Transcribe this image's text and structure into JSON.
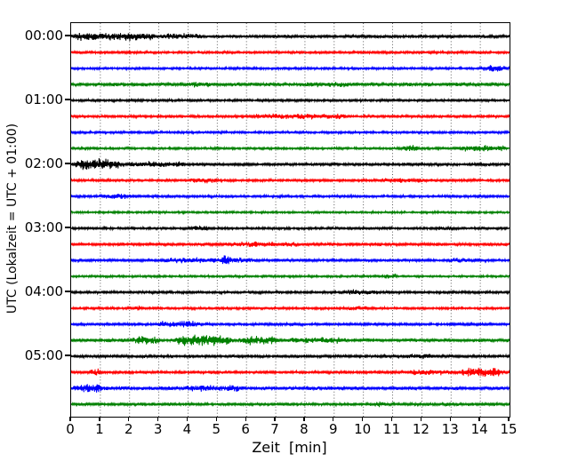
{
  "chart_data": {
    "type": "line",
    "variant": "helicorder-seismogram",
    "title": "",
    "xlabel": "Zeit  [min]",
    "ylabel": "UTC (Lokalzeit = UTC + 01:00)",
    "xlim": [
      0,
      15
    ],
    "x_ticks": [
      "0",
      "1",
      "2",
      "3",
      "4",
      "5",
      "6",
      "7",
      "8",
      "9",
      "10",
      "11",
      "12",
      "13",
      "14",
      "15"
    ],
    "grid": {
      "axis": "x",
      "style": "dotted",
      "color": "#4a4a4a"
    },
    "legend": "none",
    "colors": {
      "black": "#000000",
      "red": "#ff0000",
      "blue": "#0000ff",
      "green": "#008000"
    },
    "minutes_per_trace": 15,
    "y_hour_labels": [
      {
        "label": "00:00",
        "trace_index": 0
      },
      {
        "label": "01:00",
        "trace_index": 4
      },
      {
        "label": "02:00",
        "trace_index": 8
      },
      {
        "label": "03:00",
        "trace_index": 12
      },
      {
        "label": "04:00",
        "trace_index": 16
      },
      {
        "label": "05:00",
        "trace_index": 20
      }
    ],
    "traces": [
      {
        "start_utc": "00:00",
        "color": "black",
        "base_amp": 1.5,
        "events": [
          {
            "from": 0,
            "to": 3.0,
            "amp": 2.4
          },
          {
            "from": 3.0,
            "to": 4.6,
            "amp": 1.4
          }
        ]
      },
      {
        "start_utc": "00:15",
        "color": "red",
        "base_amp": 1.25,
        "events": []
      },
      {
        "start_utc": "00:30",
        "color": "blue",
        "base_amp": 1.2,
        "events": [
          {
            "from": 13.9,
            "to": 15,
            "amp": 1.9
          }
        ]
      },
      {
        "start_utc": "00:45",
        "color": "green",
        "base_amp": 1.7,
        "events": [
          {
            "from": 3.8,
            "to": 5.2,
            "amp": 1.0
          },
          {
            "from": 7.8,
            "to": 9.6,
            "amp": 1.0
          }
        ]
      },
      {
        "start_utc": "01:00",
        "color": "black",
        "base_amp": 1.25,
        "events": []
      },
      {
        "start_utc": "01:15",
        "color": "red",
        "base_amp": 1.3,
        "events": [
          {
            "from": 6.0,
            "to": 9.6,
            "amp": 1.3
          }
        ]
      },
      {
        "start_utc": "01:30",
        "color": "blue",
        "base_amp": 1.2,
        "events": []
      },
      {
        "start_utc": "01:45",
        "color": "green",
        "base_amp": 1.2,
        "events": [
          {
            "from": 11.3,
            "to": 11.9,
            "amp": 2.6
          },
          {
            "from": 13.1,
            "to": 15,
            "amp": 1.9
          }
        ]
      },
      {
        "start_utc": "02:00",
        "color": "black",
        "base_amp": 1.4,
        "events": [
          {
            "from": 0,
            "to": 1.8,
            "amp": 4.0
          },
          {
            "from": 1.8,
            "to": 4.0,
            "amp": 1.5
          }
        ]
      },
      {
        "start_utc": "02:15",
        "color": "red",
        "base_amp": 1.3,
        "events": [
          {
            "from": 3.8,
            "to": 5.2,
            "amp": 1.2
          },
          {
            "from": 10.3,
            "to": 12.2,
            "amp": 0.9
          }
        ]
      },
      {
        "start_utc": "02:30",
        "color": "blue",
        "base_amp": 1.25,
        "events": [
          {
            "from": 1.0,
            "to": 2.2,
            "amp": 1.4
          }
        ]
      },
      {
        "start_utc": "02:45",
        "color": "green",
        "base_amp": 1.1,
        "events": []
      },
      {
        "start_utc": "03:00",
        "color": "black",
        "base_amp": 1.2,
        "events": [
          {
            "from": 3.9,
            "to": 4.9,
            "amp": 1.2
          },
          {
            "from": 12.4,
            "to": 13.2,
            "amp": 1.0
          }
        ]
      },
      {
        "start_utc": "03:15",
        "color": "red",
        "base_amp": 1.45,
        "events": [
          {
            "from": 5.5,
            "to": 8.0,
            "amp": 1.1
          }
        ]
      },
      {
        "start_utc": "03:30",
        "color": "blue",
        "base_amp": 1.35,
        "events": [
          {
            "from": 3.0,
            "to": 6.4,
            "amp": 1.2
          },
          {
            "from": 5.1,
            "to": 5.5,
            "amp": 2.6
          },
          {
            "from": 12.8,
            "to": 14.1,
            "amp": 1.0
          }
        ]
      },
      {
        "start_utc": "03:45",
        "color": "green",
        "base_amp": 1.1,
        "events": [
          {
            "from": 10.6,
            "to": 11.3,
            "amp": 1.4
          }
        ]
      },
      {
        "start_utc": "04:00",
        "color": "black",
        "base_amp": 1.35,
        "events": [
          {
            "from": 9.2,
            "to": 10.6,
            "amp": 1.4
          }
        ]
      },
      {
        "start_utc": "04:15",
        "color": "red",
        "base_amp": 1.2,
        "events": [
          {
            "from": 2.0,
            "to": 2.5,
            "amp": 1.5
          },
          {
            "from": 9.4,
            "to": 10.4,
            "amp": 1.1
          }
        ]
      },
      {
        "start_utc": "04:30",
        "color": "blue",
        "base_amp": 1.35,
        "events": [
          {
            "from": 2.8,
            "to": 4.6,
            "amp": 1.9
          }
        ]
      },
      {
        "start_utc": "04:45",
        "color": "green",
        "base_amp": 1.6,
        "events": [
          {
            "from": 2.0,
            "to": 3.2,
            "amp": 2.4
          },
          {
            "from": 3.5,
            "to": 5.6,
            "amp": 3.9
          },
          {
            "from": 5.6,
            "to": 7.2,
            "amp": 2.8
          },
          {
            "from": 7.2,
            "to": 9.5,
            "amp": 1.3
          }
        ]
      },
      {
        "start_utc": "05:00",
        "color": "black",
        "base_amp": 1.45,
        "events": [
          {
            "from": 11.3,
            "to": 12.6,
            "amp": 1.1
          }
        ]
      },
      {
        "start_utc": "05:15",
        "color": "red",
        "base_amp": 1.4,
        "events": [
          {
            "from": 0.6,
            "to": 1.1,
            "amp": 2.1
          },
          {
            "from": 11.5,
            "to": 13.2,
            "amp": 1.5
          },
          {
            "from": 13.2,
            "to": 14.9,
            "amp": 3.0
          }
        ]
      },
      {
        "start_utc": "05:30",
        "color": "blue",
        "base_amp": 1.7,
        "events": [
          {
            "from": 0,
            "to": 1.3,
            "amp": 2.6
          },
          {
            "from": 3.8,
            "to": 6.0,
            "amp": 1.3
          }
        ]
      },
      {
        "start_utc": "05:45",
        "color": "green",
        "base_amp": 1.45,
        "events": [
          {
            "from": 10.3,
            "to": 10.9,
            "amp": 1.2
          }
        ]
      }
    ]
  }
}
